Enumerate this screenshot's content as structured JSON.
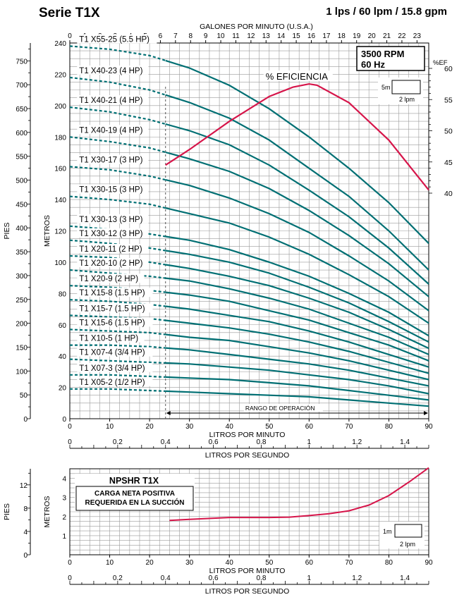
{
  "header": {
    "title": "Serie T1X",
    "rating": "1 lps / 60 lpm / 15.8 gpm"
  },
  "colors": {
    "curve": "#006f73",
    "efficiency": "#d6154a",
    "grid": "#9a9a9a",
    "axis": "#000000"
  },
  "chart_data": [
    {
      "type": "line",
      "name": "pump-curves",
      "rpm_label": "3500 RPM",
      "hz_label": "60 Hz",
      "x": [
        0,
        10,
        20,
        30,
        40,
        50,
        60,
        70,
        80,
        90
      ],
      "x_ticks": [
        "0",
        "10",
        "20",
        "30",
        "40",
        "50",
        "60",
        "70",
        "80",
        "90"
      ],
      "xlabel": "LITROS POR MINUTO",
      "xlim": [
        0,
        90
      ],
      "x2_ticks": [
        "0",
        "0.2",
        "0.4",
        "0.6",
        "0.8",
        "1",
        "1.2",
        "1.4"
      ],
      "x2label": "LITROS POR SEGUNDO",
      "xtop_ticks": [
        "0",
        "1",
        "2",
        "3",
        "4",
        "5",
        "6",
        "7",
        "8",
        "9",
        "10",
        "11",
        "12",
        "13",
        "14",
        "15",
        "16",
        "17",
        "18",
        "19",
        "20",
        "21",
        "22",
        "23"
      ],
      "xtoplabel": "GALONES POR MINUTO (U.S.A.)",
      "y_ticks": [
        "0",
        "20",
        "40",
        "60",
        "80",
        "100",
        "120",
        "140",
        "160",
        "180",
        "200",
        "220",
        "240"
      ],
      "ylabel": "METROS",
      "ylim": [
        0,
        240
      ],
      "y2_ticks": [
        "0",
        "50",
        "100",
        "150",
        "200",
        "250",
        "300",
        "350",
        "400",
        "450",
        "500",
        "550",
        "600",
        "650",
        "700",
        "750"
      ],
      "y2label": "PIES",
      "eff_ticks": [
        "40",
        "45",
        "50",
        "55",
        "60"
      ],
      "eff_label": "%EF",
      "operating_range_label": "RANGO DE OPERACIÓN",
      "operating_range": [
        24,
        90
      ],
      "scale_box_labels": [
        "5m",
        "2 lpm"
      ],
      "efficiency_label": "% EFICIENCIA",
      "efficiency": {
        "x": [
          24,
          30,
          40,
          50,
          56,
          60,
          62,
          70,
          80,
          90
        ],
        "y": [
          44.5,
          47,
          51.5,
          55.5,
          57,
          57.5,
          57.3,
          54.5,
          48.5,
          40.5
        ]
      },
      "series": [
        {
          "name": "T1 X55-25 (5.5 HP)",
          "values": [
            238,
            236,
            232,
            224,
            213,
            198,
            180,
            160,
            138,
            112
          ]
        },
        {
          "name": "T1 X40-23 (4 HP)",
          "values": [
            218,
            215,
            210,
            202,
            192,
            178,
            160,
            142,
            120,
            95
          ]
        },
        {
          "name": "T1 X40-21 (4 HP)",
          "values": [
            199,
            196,
            191,
            184,
            175,
            162,
            146,
            129,
            109,
            86
          ]
        },
        {
          "name": "T1 X40-19 (4 HP)",
          "values": [
            180,
            177,
            173,
            166,
            158,
            147,
            133,
            117,
            99,
            78
          ]
        },
        {
          "name": "T1 X30-17 (3 HP)",
          "values": [
            161,
            159,
            155,
            149,
            141,
            131,
            119,
            104,
            88,
            69
          ]
        },
        {
          "name": "T1 X30-15 (3 HP)",
          "values": [
            142,
            140,
            137,
            131,
            125,
            116,
            105,
            92,
            78,
            61
          ]
        },
        {
          "name": "T1 X30-13 (3 HP)",
          "values": [
            123,
            121,
            118,
            114,
            108,
            100,
            91,
            80,
            68,
            53
          ]
        },
        {
          "name": "T1 X30-12 (3 HP)",
          "values": [
            114,
            112,
            109,
            105,
            100,
            93,
            84,
            74,
            62,
            49
          ]
        },
        {
          "name": "T1 X20-11 (2 HP)",
          "values": [
            104,
            103,
            100,
            96,
            91,
            85,
            77,
            68,
            57,
            45
          ]
        },
        {
          "name": "T1 X20-10 (2 HP)",
          "values": [
            95,
            93,
            91,
            88,
            83,
            77,
            70,
            61,
            52,
            41
          ]
        },
        {
          "name": "T1 X20-9 (2 HP)",
          "values": [
            85,
            84,
            82,
            79,
            75,
            69,
            63,
            55,
            47,
            37
          ]
        },
        {
          "name": "T1 X15-8 (1.5 HP)",
          "values": [
            76,
            75,
            73,
            70,
            66,
            62,
            56,
            49,
            41,
            33
          ]
        },
        {
          "name": "T1 X15-7 (1.5 HP)",
          "values": [
            66,
            65,
            64,
            61,
            58,
            54,
            49,
            43,
            36,
            29
          ]
        },
        {
          "name": "T1 X15-6 (1.5 HP)",
          "values": [
            57,
            56,
            55,
            52,
            50,
            46,
            42,
            37,
            31,
            25
          ]
        },
        {
          "name": "T1 X10-5 (1 HP)",
          "values": [
            47,
            47,
            46,
            44,
            41,
            38,
            35,
            31,
            26,
            21
          ]
        },
        {
          "name": "T1 X07-4 (3/4 HP)",
          "values": [
            38,
            37,
            36,
            35,
            33,
            31,
            28,
            25,
            21,
            16
          ]
        },
        {
          "name": "T1 X07-3 (3/4 HP)",
          "values": [
            28,
            28,
            27,
            26,
            25,
            23,
            21,
            18,
            15,
            12
          ]
        },
        {
          "name": "T1 X05-2 (1/2 HP)",
          "values": [
            19,
            19,
            18,
            17,
            16,
            15,
            14,
            12,
            10,
            8
          ]
        }
      ]
    },
    {
      "type": "line",
      "name": "npshr",
      "title": "NPSHR T1X",
      "subtitle_lines": [
        "CARGA NETA POSITIVA",
        "REQUERIDA EN LA SUCCIÓN"
      ],
      "x_ticks": [
        "0",
        "10",
        "20",
        "30",
        "40",
        "50",
        "60",
        "70",
        "80",
        "90"
      ],
      "xlabel": "LITROS POR MINUTO",
      "xlim": [
        0,
        90
      ],
      "x2_ticks": [
        "0",
        "0.2",
        "0.4",
        "0.6",
        "0.8",
        "1",
        "1.2",
        "1.4"
      ],
      "x2label": "LITROS POR SEGUNDO",
      "y_ticks": [
        "1",
        "2",
        "3",
        "4"
      ],
      "ylabel": "METROS",
      "ylim": [
        0,
        4.5
      ],
      "y2_ticks": [
        "0",
        "4",
        "8",
        "12"
      ],
      "y2label": "PIES",
      "scale_box_labels": [
        "1m",
        "2 lpm"
      ],
      "series": [
        {
          "x": [
            25,
            30,
            40,
            50,
            55,
            60,
            65,
            70,
            75,
            80,
            85,
            90
          ],
          "values": [
            1.8,
            1.85,
            1.95,
            1.95,
            1.97,
            2.05,
            2.15,
            2.3,
            2.6,
            3.1,
            3.8,
            4.55
          ]
        }
      ]
    }
  ]
}
